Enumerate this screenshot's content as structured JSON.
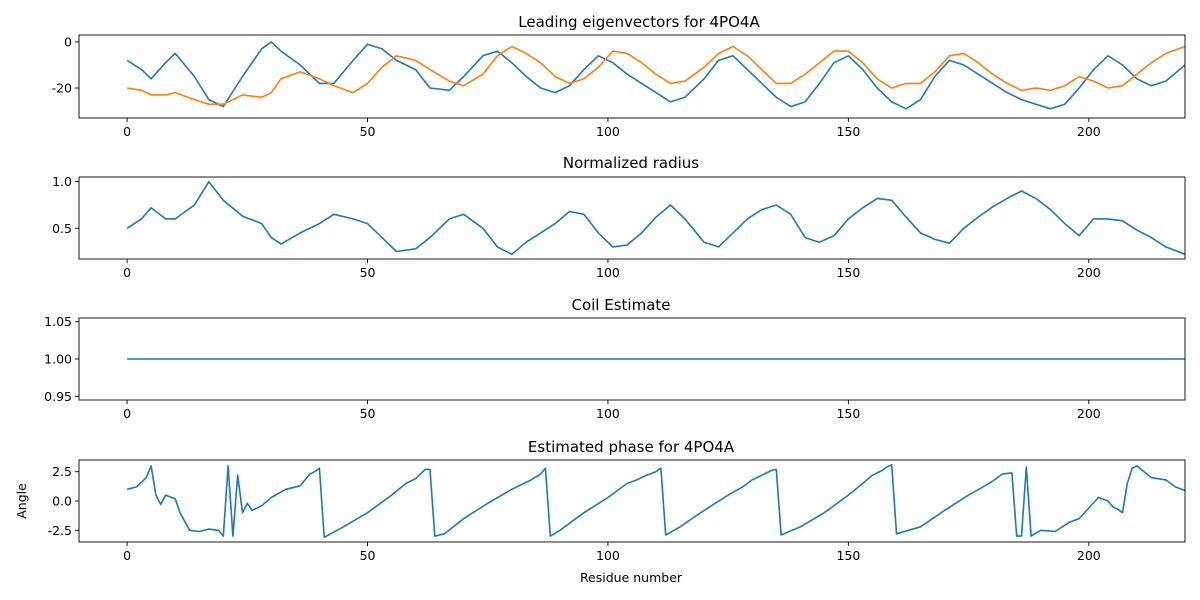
{
  "colors": {
    "series_blue": "#1f77b4",
    "series_orange": "#ff7f0e"
  },
  "chart_data": [
    {
      "type": "line",
      "title": "Leading eigenvectors for 4PO4A",
      "xlabel": "",
      "ylabel": "",
      "xlim": [
        -10,
        220
      ],
      "ylim": [
        -33,
        3
      ],
      "xticks": [
        0,
        50,
        100,
        150,
        200
      ],
      "yticks": [
        0,
        -20
      ],
      "series": [
        {
          "color": "#1f77b4",
          "x": [
            0,
            3,
            5,
            8,
            10,
            14,
            17,
            20,
            24,
            28,
            30,
            32,
            36,
            40,
            43,
            47,
            50,
            53,
            56,
            60,
            63,
            67,
            70,
            74,
            77,
            80,
            83,
            86,
            89,
            92,
            95,
            98,
            101,
            104,
            107,
            110,
            113,
            116,
            120,
            123,
            126,
            129,
            132,
            135,
            138,
            141,
            144,
            147,
            150,
            153,
            156,
            159,
            162,
            165,
            168,
            171,
            174,
            177,
            180,
            183,
            186,
            189,
            192,
            195,
            198,
            201,
            204,
            207,
            210,
            213,
            216,
            220
          ],
          "y": [
            -8,
            -12,
            -16,
            -9,
            -5,
            -15,
            -25,
            -28,
            -15,
            -3,
            0,
            -4,
            -10,
            -18,
            -18,
            -8,
            -1,
            -3,
            -8,
            -12,
            -20,
            -21,
            -15,
            -6,
            -4,
            -9,
            -15,
            -20,
            -22,
            -19,
            -12,
            -6,
            -9,
            -14,
            -18,
            -22,
            -26,
            -24,
            -16,
            -8,
            -6,
            -12,
            -18,
            -24,
            -28,
            -26,
            -18,
            -9,
            -6,
            -12,
            -20,
            -26,
            -29,
            -25,
            -15,
            -8,
            -10,
            -14,
            -18,
            -22,
            -25,
            -27,
            -29,
            -27,
            -20,
            -12,
            -6,
            -10,
            -16,
            -19,
            -17,
            -10
          ]
        },
        {
          "color": "#ff7f0e",
          "x": [
            0,
            3,
            5,
            8,
            10,
            14,
            17,
            20,
            24,
            28,
            30,
            32,
            36,
            40,
            43,
            47,
            50,
            53,
            56,
            60,
            63,
            67,
            70,
            74,
            77,
            80,
            83,
            86,
            89,
            92,
            95,
            98,
            101,
            104,
            107,
            110,
            113,
            116,
            120,
            123,
            126,
            129,
            132,
            135,
            138,
            141,
            144,
            147,
            150,
            153,
            156,
            159,
            162,
            165,
            168,
            171,
            174,
            177,
            180,
            183,
            186,
            189,
            192,
            195,
            198,
            201,
            204,
            207,
            210,
            213,
            216,
            220
          ],
          "y": [
            -20,
            -21,
            -23,
            -23,
            -22,
            -25,
            -27,
            -27,
            -23,
            -24,
            -22,
            -16,
            -13,
            -16,
            -19,
            -22,
            -18,
            -11,
            -6,
            -8,
            -12,
            -17,
            -19,
            -14,
            -6,
            -2,
            -5,
            -9,
            -15,
            -18,
            -16,
            -11,
            -4,
            -5,
            -9,
            -14,
            -18,
            -17,
            -11,
            -5,
            -2,
            -6,
            -12,
            -18,
            -18,
            -14,
            -9,
            -4,
            -4,
            -9,
            -16,
            -20,
            -18,
            -18,
            -13,
            -6,
            -5,
            -9,
            -14,
            -18,
            -21,
            -20,
            -21,
            -19,
            -15,
            -17,
            -20,
            -19,
            -14,
            -9,
            -5,
            -2
          ]
        }
      ]
    },
    {
      "type": "line",
      "title": "Normalized radius",
      "xlabel": "",
      "ylabel": "",
      "xlim": [
        -10,
        220
      ],
      "ylim": [
        0.17,
        1.05
      ],
      "xticks": [
        0,
        50,
        100,
        150,
        200
      ],
      "yticks": [
        1.0,
        0.5
      ],
      "series": [
        {
          "color": "#1f77b4",
          "x": [
            0,
            3,
            5,
            8,
            10,
            14,
            17,
            20,
            24,
            28,
            30,
            32,
            36,
            40,
            43,
            47,
            50,
            53,
            56,
            60,
            63,
            67,
            70,
            74,
            77,
            80,
            83,
            86,
            89,
            92,
            95,
            98,
            101,
            104,
            107,
            110,
            113,
            116,
            120,
            123,
            126,
            129,
            132,
            135,
            138,
            141,
            144,
            147,
            150,
            153,
            156,
            159,
            162,
            165,
            168,
            171,
            174,
            177,
            180,
            183,
            186,
            189,
            192,
            195,
            198,
            201,
            204,
            207,
            210,
            213,
            216,
            220
          ],
          "y": [
            0.5,
            0.6,
            0.72,
            0.6,
            0.6,
            0.75,
            1.0,
            0.8,
            0.63,
            0.55,
            0.4,
            0.33,
            0.45,
            0.55,
            0.65,
            0.6,
            0.55,
            0.4,
            0.25,
            0.28,
            0.4,
            0.6,
            0.65,
            0.5,
            0.3,
            0.22,
            0.35,
            0.45,
            0.55,
            0.68,
            0.65,
            0.45,
            0.3,
            0.32,
            0.45,
            0.62,
            0.75,
            0.6,
            0.35,
            0.3,
            0.45,
            0.6,
            0.7,
            0.75,
            0.65,
            0.4,
            0.35,
            0.42,
            0.6,
            0.72,
            0.82,
            0.8,
            0.62,
            0.45,
            0.38,
            0.34,
            0.5,
            0.62,
            0.73,
            0.82,
            0.9,
            0.82,
            0.7,
            0.55,
            0.42,
            0.6,
            0.6,
            0.58,
            0.48,
            0.4,
            0.3,
            0.22
          ]
        }
      ]
    },
    {
      "type": "line",
      "title": "Coil Estimate",
      "xlabel": "",
      "ylabel": "",
      "xlim": [
        -10,
        220
      ],
      "ylim": [
        0.945,
        1.055
      ],
      "xticks": [
        0,
        50,
        100,
        150,
        200
      ],
      "yticks": [
        1.05,
        1.0,
        0.95
      ],
      "series": [
        {
          "color": "#1f77b4",
          "x": [
            0,
            220
          ],
          "y": [
            1.0,
            1.0
          ]
        }
      ]
    },
    {
      "type": "line",
      "title": "Estimated phase for 4PO4A",
      "xlabel": "Residue number",
      "ylabel": "Angle",
      "xlim": [
        -10,
        220
      ],
      "ylim": [
        -3.5,
        3.5
      ],
      "xticks": [
        0,
        50,
        100,
        150,
        200
      ],
      "yticks": [
        2.5,
        0.0,
        -2.5
      ],
      "series": [
        {
          "color": "#1f77b4",
          "x": [
            0,
            2,
            4,
            5,
            6,
            7,
            8,
            10,
            11,
            13,
            15,
            17,
            19,
            20,
            21,
            22,
            23,
            24,
            25,
            26,
            28,
            30,
            33,
            36,
            38,
            39,
            40,
            41,
            45,
            50,
            55,
            58,
            60,
            62,
            63,
            64,
            66,
            70,
            75,
            80,
            84,
            86,
            87,
            88,
            90,
            95,
            100,
            104,
            106,
            108,
            110,
            111,
            112,
            115,
            120,
            125,
            128,
            130,
            132,
            134,
            135,
            136,
            140,
            145,
            150,
            153,
            155,
            157,
            158,
            159,
            160,
            165,
            170,
            175,
            178,
            180,
            181,
            182,
            184,
            185,
            186,
            187,
            188,
            190,
            193,
            196,
            198,
            200,
            202,
            204,
            205,
            206,
            207,
            208,
            209,
            210,
            213,
            216,
            218,
            220
          ],
          "y": [
            1.0,
            1.2,
            2.0,
            3.0,
            0.5,
            -0.3,
            0.5,
            0.2,
            -1.0,
            -2.5,
            -2.6,
            -2.4,
            -2.5,
            -3.0,
            3.0,
            -3.0,
            2.2,
            -1.0,
            -0.2,
            -0.8,
            -0.4,
            0.3,
            1.0,
            1.3,
            2.3,
            2.5,
            2.8,
            -3.1,
            -2.2,
            -1.0,
            0.5,
            1.5,
            1.9,
            2.7,
            2.7,
            -3.0,
            -2.8,
            -1.5,
            -0.2,
            1.0,
            1.8,
            2.3,
            2.8,
            -3.0,
            -2.5,
            -1.0,
            0.3,
            1.5,
            1.8,
            2.2,
            2.5,
            2.8,
            -2.9,
            -2.2,
            -0.8,
            0.5,
            1.2,
            1.8,
            2.2,
            2.6,
            2.7,
            -2.9,
            -2.2,
            -1.0,
            0.5,
            1.5,
            2.2,
            2.6,
            2.9,
            3.1,
            -2.8,
            -2.2,
            -0.8,
            0.5,
            1.2,
            1.7,
            2.0,
            2.3,
            2.4,
            -3.0,
            -3.0,
            2.9,
            -3.0,
            -2.5,
            -2.6,
            -1.8,
            -1.5,
            -0.6,
            0.3,
            0.0,
            -0.5,
            -0.7,
            -1.0,
            1.5,
            2.8,
            3.0,
            2.0,
            1.8,
            1.2,
            0.9
          ]
        }
      ]
    }
  ]
}
